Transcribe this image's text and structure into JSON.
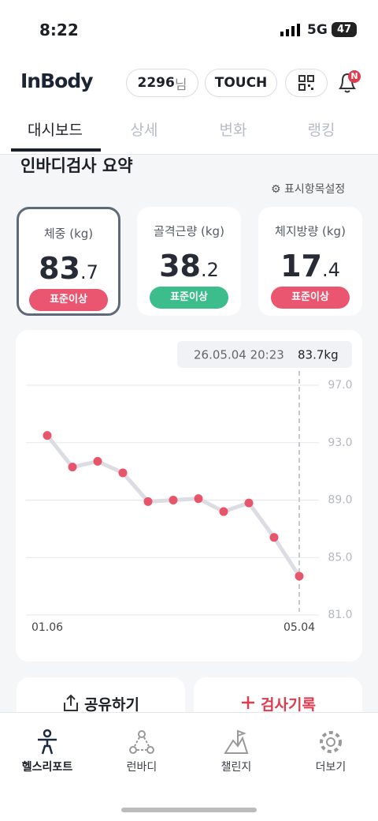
{
  "status_bar": {
    "time": "8:22",
    "network": "5G",
    "battery": "47"
  },
  "header": {
    "logo": "InBody",
    "points": "2296",
    "points_suffix": "님",
    "touch": "TOUCH",
    "notification_badge": "N"
  },
  "tabs": [
    "대시보드",
    "상세",
    "변화",
    "랭킹"
  ],
  "summary": {
    "title": "인바디검사 요약",
    "settings": "표시항목설정",
    "cards": [
      {
        "label": "체중 (kg)",
        "int": "83",
        "dec": ".7",
        "status": "표준이상"
      },
      {
        "label": "골격근량 (kg)",
        "int": "38",
        "dec": ".2",
        "status": "표준이상"
      },
      {
        "label": "체지방량 (kg)",
        "int": "17",
        "dec": ".4",
        "status": "표준이상"
      }
    ]
  },
  "chart_data": {
    "type": "line",
    "annotation_date": "26.05.04 20:23",
    "annotation_value": "83.7kg",
    "categories": [
      "01.06",
      null,
      null,
      null,
      null,
      null,
      null,
      null,
      null,
      null,
      "05.04"
    ],
    "values": [
      93.5,
      91.3,
      91.7,
      90.9,
      88.9,
      89.0,
      89.1,
      88.2,
      88.8,
      86.4,
      83.7
    ],
    "color": "#e8556b",
    "line_color": "#dcdde3",
    "ylim": [
      81,
      97
    ],
    "yticks": [
      {
        "value": 81,
        "label": "81.0"
      },
      {
        "value": 85,
        "label": "85.0"
      },
      {
        "value": 89,
        "label": "89.0"
      },
      {
        "value": 93,
        "label": "93.0"
      },
      {
        "value": 97,
        "label": "97.0"
      }
    ],
    "grid": true
  },
  "actions": [
    "공유하기",
    "검사기록"
  ],
  "nav": [
    "헬스리포트",
    "런바디",
    "챌린지",
    "더보기"
  ]
}
